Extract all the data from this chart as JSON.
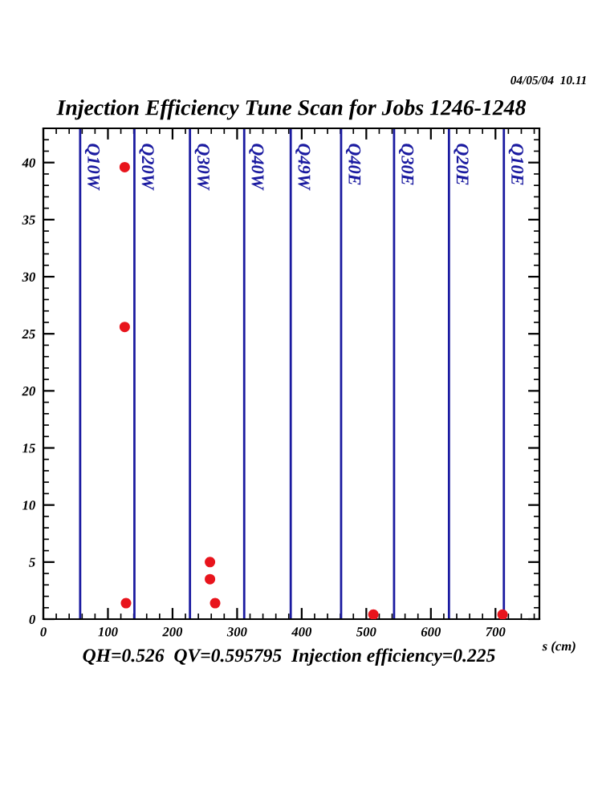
{
  "chart_data": {
    "type": "scatter",
    "title": "Injection Efficiency Tune Scan for Jobs 1246-1248",
    "xlabel": "s (cm)",
    "x": [
      126,
      126,
      128,
      258,
      258,
      266,
      511,
      711
    ],
    "series": [
      {
        "color": "#e8141c",
        "values": [
          39.6,
          25.6,
          1.4,
          5.0,
          3.5,
          1.4,
          0.4,
          0.4
        ]
      }
    ],
    "marker": "circle",
    "xlim": [
      0,
      768
    ],
    "ylim": [
      0,
      43
    ],
    "xticks": [
      0,
      100,
      200,
      300,
      400,
      500,
      600,
      700
    ],
    "yticks": [
      0,
      5,
      10,
      15,
      20,
      25,
      30,
      35,
      40
    ],
    "grid": false,
    "legend": false,
    "ref_lines": [
      {
        "axis": "x",
        "value": 57,
        "label": "Q10W",
        "color": "#1a1aa0"
      },
      {
        "axis": "x",
        "value": 141,
        "label": "Q20W",
        "color": "#1a1aa0"
      },
      {
        "axis": "x",
        "value": 227,
        "label": "Q30W",
        "color": "#1a1aa0"
      },
      {
        "axis": "x",
        "value": 311,
        "label": "Q40W",
        "color": "#1a1aa0"
      },
      {
        "axis": "x",
        "value": 383,
        "label": "Q49W",
        "color": "#1a1aa0"
      },
      {
        "axis": "x",
        "value": 461,
        "label": "Q40E",
        "color": "#1a1aa0"
      },
      {
        "axis": "x",
        "value": 543,
        "label": "Q30E",
        "color": "#1a1aa0"
      },
      {
        "axis": "x",
        "value": 628,
        "label": "Q20E",
        "color": "#1a1aa0"
      },
      {
        "axis": "x",
        "value": 713,
        "label": "Q10E",
        "color": "#1a1aa0"
      }
    ],
    "annotations": [
      "04/05/04  10.11",
      "QH=0.526  QV=0.595795  Injection efficiency=0.225"
    ]
  }
}
